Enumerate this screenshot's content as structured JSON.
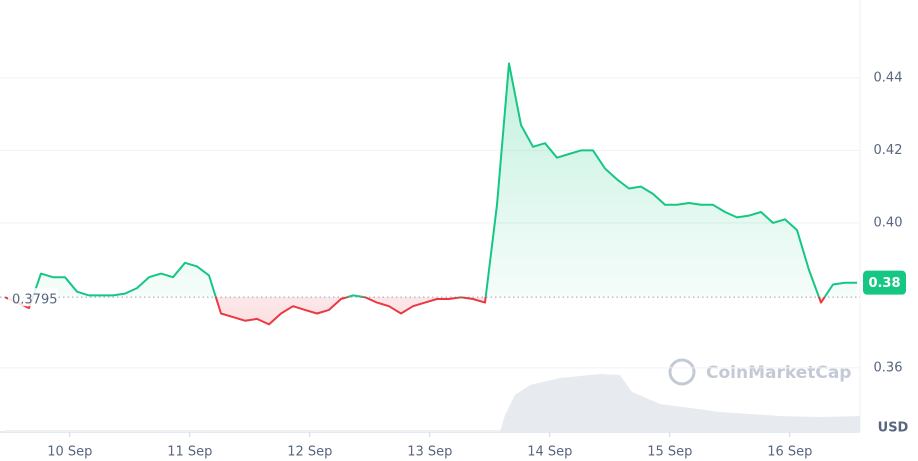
{
  "chart_data": {
    "type": "line",
    "values": [
      0.3795,
      0.378,
      0.3765,
      0.386,
      0.385,
      0.385,
      0.381,
      0.38,
      0.38,
      0.38,
      0.3805,
      0.382,
      0.385,
      0.386,
      0.385,
      0.389,
      0.388,
      0.3855,
      0.375,
      0.374,
      0.373,
      0.3735,
      0.372,
      0.375,
      0.377,
      0.376,
      0.375,
      0.376,
      0.379,
      0.38,
      0.3795,
      0.378,
      0.377,
      0.375,
      0.377,
      0.378,
      0.379,
      0.379,
      0.3795,
      0.379,
      0.378,
      0.405,
      0.444,
      0.427,
      0.421,
      0.422,
      0.418,
      0.419,
      0.42,
      0.42,
      0.415,
      0.412,
      0.4095,
      0.41,
      0.408,
      0.405,
      0.405,
      0.4055,
      0.405,
      0.405,
      0.403,
      0.4015,
      0.402,
      0.403,
      0.4,
      0.401,
      0.398,
      0.387,
      0.378,
      0.383,
      0.3835,
      0.3835
    ],
    "baseline": 0.3795,
    "price_label": 0.38,
    "colors": {
      "up": "#16c784",
      "down": "#ea3943"
    },
    "xlim": [
      0,
      71
    ],
    "xticks": [
      {
        "value": 5.4,
        "label": "10 Sep"
      },
      {
        "value": 15.4,
        "label": "11 Sep"
      },
      {
        "value": 25.4,
        "label": "12 Sep"
      },
      {
        "value": 35.4,
        "label": "13 Sep"
      },
      {
        "value": 45.4,
        "label": "14 Sep"
      },
      {
        "value": 55.4,
        "label": "15 Sep"
      },
      {
        "value": 65.4,
        "label": "16 Sep"
      }
    ],
    "ylim": [
      0.3423,
      0.4615
    ],
    "yticks": [
      0.36,
      {
        "value": 0.4,
        "label": "0.40"
      },
      0.42,
      0.44
    ],
    "currency": "USD",
    "watermark": "CoinMarketCap",
    "grid": true
  }
}
